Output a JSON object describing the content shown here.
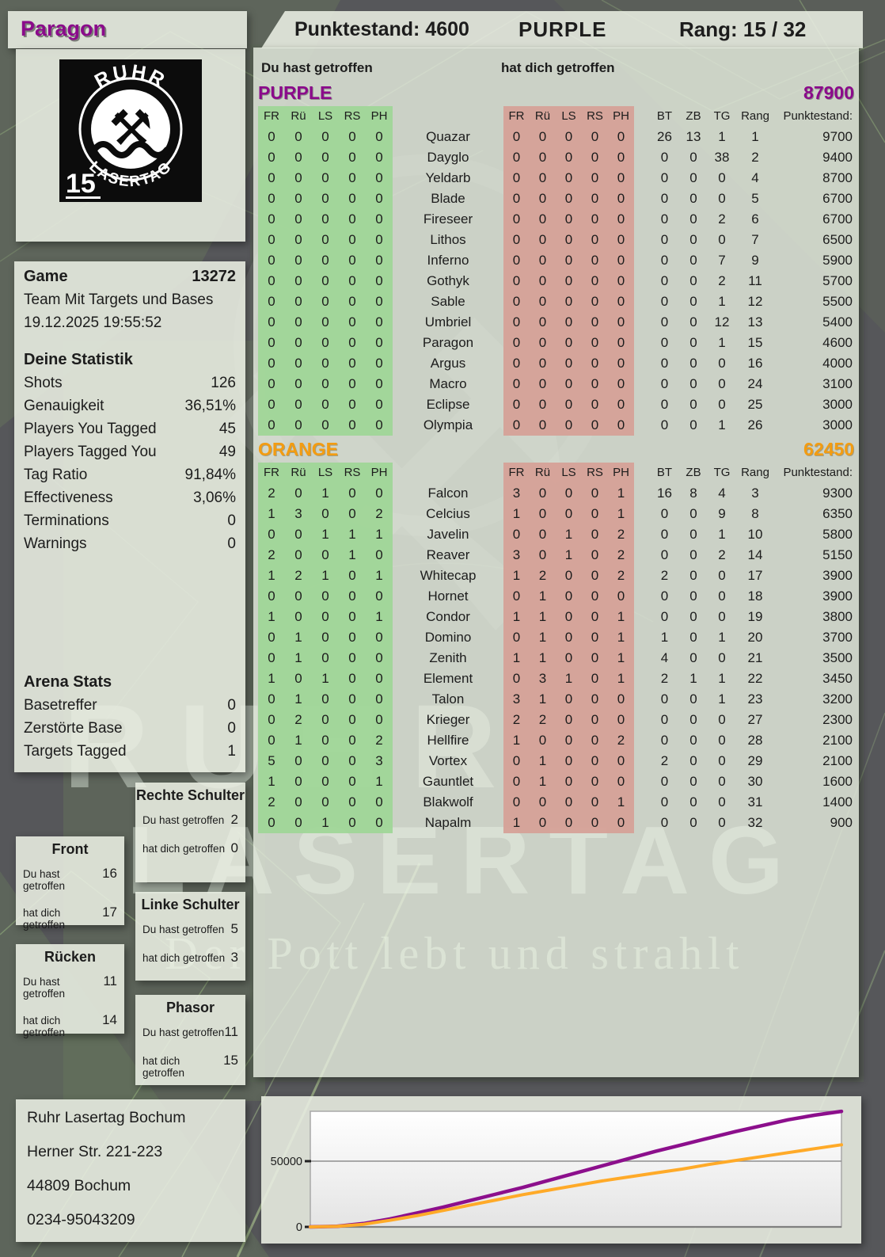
{
  "header": {
    "player": "Paragon",
    "punktestand_label": "Punktestand: 4600",
    "team": "PURPLE",
    "rang_label": "Rang: 15 / 32"
  },
  "logo": {
    "arc_top": "RUHR",
    "arc_bottom": "LASERTAG",
    "badge": "15"
  },
  "game": {
    "label": "Game",
    "id": "13272",
    "mode": "Team Mit Targets und Bases",
    "datetime": "19.12.2025 19:55:52"
  },
  "your_stats": {
    "title": "Deine Statistik",
    "rows": [
      {
        "label": "Shots",
        "value": "126"
      },
      {
        "label": "Genauigkeit",
        "value": "36,51%"
      },
      {
        "label": "Players You Tagged",
        "value": "45"
      },
      {
        "label": "Players Tagged You",
        "value": "49"
      },
      {
        "label": "Tag Ratio",
        "value": "91,84%"
      },
      {
        "label": "Effectiveness",
        "value": "3,06%"
      },
      {
        "label": "Terminations",
        "value": "0"
      },
      {
        "label": "Warnings",
        "value": "0"
      }
    ]
  },
  "arena_stats": {
    "title": "Arena Stats",
    "rows": [
      {
        "label": "Basetreffer",
        "value": "0"
      },
      {
        "label": "Zerstörte Base",
        "value": "0"
      },
      {
        "label": "Targets Tagged",
        "value": "1"
      }
    ]
  },
  "labels": {
    "you_hit": "Du hast getroffen",
    "hit_you": "hat dich getroffen"
  },
  "hit_zones": {
    "rechte_schulter": {
      "title": "Rechte Schulter",
      "you": "2",
      "them": "0"
    },
    "front": {
      "title": "Front",
      "you": "16",
      "them": "17"
    },
    "linke_schulter": {
      "title": "Linke Schulter",
      "you": "5",
      "them": "3"
    },
    "ruecken": {
      "title": "Rücken",
      "you": "11",
      "them": "14"
    },
    "phasor": {
      "title": "Phasor",
      "you": "11",
      "them": "15"
    }
  },
  "columns": [
    "FR",
    "Rü",
    "LS",
    "RS",
    "PH"
  ],
  "right_columns": [
    "BT",
    "ZB",
    "TG",
    "Rang",
    "Punktestand:"
  ],
  "teams": {
    "purple": {
      "name": "PURPLE",
      "score": "87900",
      "color": "#8b0a8b",
      "players": [
        {
          "name": "Quazar",
          "you": [
            0,
            0,
            0,
            0,
            0
          ],
          "them": [
            0,
            0,
            0,
            0,
            0
          ],
          "bt": 26,
          "zb": 13,
          "tg": 1,
          "rang": 1,
          "punktestand": 9700
        },
        {
          "name": "Dayglo",
          "you": [
            0,
            0,
            0,
            0,
            0
          ],
          "them": [
            0,
            0,
            0,
            0,
            0
          ],
          "bt": 0,
          "zb": 0,
          "tg": 38,
          "rang": 2,
          "punktestand": 9400
        },
        {
          "name": "Yeldarb",
          "you": [
            0,
            0,
            0,
            0,
            0
          ],
          "them": [
            0,
            0,
            0,
            0,
            0
          ],
          "bt": 0,
          "zb": 0,
          "tg": 0,
          "rang": 4,
          "punktestand": 8700
        },
        {
          "name": "Blade",
          "you": [
            0,
            0,
            0,
            0,
            0
          ],
          "them": [
            0,
            0,
            0,
            0,
            0
          ],
          "bt": 0,
          "zb": 0,
          "tg": 0,
          "rang": 5,
          "punktestand": 6700
        },
        {
          "name": "Fireseer",
          "you": [
            0,
            0,
            0,
            0,
            0
          ],
          "them": [
            0,
            0,
            0,
            0,
            0
          ],
          "bt": 0,
          "zb": 0,
          "tg": 2,
          "rang": 6,
          "punktestand": 6700
        },
        {
          "name": "Lithos",
          "you": [
            0,
            0,
            0,
            0,
            0
          ],
          "them": [
            0,
            0,
            0,
            0,
            0
          ],
          "bt": 0,
          "zb": 0,
          "tg": 0,
          "rang": 7,
          "punktestand": 6500
        },
        {
          "name": "Inferno",
          "you": [
            0,
            0,
            0,
            0,
            0
          ],
          "them": [
            0,
            0,
            0,
            0,
            0
          ],
          "bt": 0,
          "zb": 0,
          "tg": 7,
          "rang": 9,
          "punktestand": 5900
        },
        {
          "name": "Gothyk",
          "you": [
            0,
            0,
            0,
            0,
            0
          ],
          "them": [
            0,
            0,
            0,
            0,
            0
          ],
          "bt": 0,
          "zb": 0,
          "tg": 2,
          "rang": 11,
          "punktestand": 5700
        },
        {
          "name": "Sable",
          "you": [
            0,
            0,
            0,
            0,
            0
          ],
          "them": [
            0,
            0,
            0,
            0,
            0
          ],
          "bt": 0,
          "zb": 0,
          "tg": 1,
          "rang": 12,
          "punktestand": 5500
        },
        {
          "name": "Umbriel",
          "you": [
            0,
            0,
            0,
            0,
            0
          ],
          "them": [
            0,
            0,
            0,
            0,
            0
          ],
          "bt": 0,
          "zb": 0,
          "tg": 12,
          "rang": 13,
          "punktestand": 5400
        },
        {
          "name": "Paragon",
          "you": [
            0,
            0,
            0,
            0,
            0
          ],
          "them": [
            0,
            0,
            0,
            0,
            0
          ],
          "bt": 0,
          "zb": 0,
          "tg": 1,
          "rang": 15,
          "punktestand": 4600
        },
        {
          "name": "Argus",
          "you": [
            0,
            0,
            0,
            0,
            0
          ],
          "them": [
            0,
            0,
            0,
            0,
            0
          ],
          "bt": 0,
          "zb": 0,
          "tg": 0,
          "rang": 16,
          "punktestand": 4000
        },
        {
          "name": "Macro",
          "you": [
            0,
            0,
            0,
            0,
            0
          ],
          "them": [
            0,
            0,
            0,
            0,
            0
          ],
          "bt": 0,
          "zb": 0,
          "tg": 0,
          "rang": 24,
          "punktestand": 3100
        },
        {
          "name": "Eclipse",
          "you": [
            0,
            0,
            0,
            0,
            0
          ],
          "them": [
            0,
            0,
            0,
            0,
            0
          ],
          "bt": 0,
          "zb": 0,
          "tg": 0,
          "rang": 25,
          "punktestand": 3000
        },
        {
          "name": "Olympia",
          "you": [
            0,
            0,
            0,
            0,
            0
          ],
          "them": [
            0,
            0,
            0,
            0,
            0
          ],
          "bt": 0,
          "zb": 0,
          "tg": 1,
          "rang": 26,
          "punktestand": 3000
        }
      ]
    },
    "orange": {
      "name": "ORANGE",
      "score": "62450",
      "color": "#f39c11",
      "players": [
        {
          "name": "Falcon",
          "you": [
            2,
            0,
            1,
            0,
            0
          ],
          "them": [
            3,
            0,
            0,
            0,
            1
          ],
          "bt": 16,
          "zb": 8,
          "tg": 4,
          "rang": 3,
          "punktestand": 9300
        },
        {
          "name": "Celcius",
          "you": [
            1,
            3,
            0,
            0,
            2
          ],
          "them": [
            1,
            0,
            0,
            0,
            1
          ],
          "bt": 0,
          "zb": 0,
          "tg": 9,
          "rang": 8,
          "punktestand": 6350
        },
        {
          "name": "Javelin",
          "you": [
            0,
            0,
            1,
            1,
            1
          ],
          "them": [
            0,
            0,
            1,
            0,
            2
          ],
          "bt": 0,
          "zb": 0,
          "tg": 1,
          "rang": 10,
          "punktestand": 5800
        },
        {
          "name": "Reaver",
          "you": [
            2,
            0,
            0,
            1,
            0
          ],
          "them": [
            3,
            0,
            1,
            0,
            2
          ],
          "bt": 0,
          "zb": 0,
          "tg": 2,
          "rang": 14,
          "punktestand": 5150
        },
        {
          "name": "Whitecap",
          "you": [
            1,
            2,
            1,
            0,
            1
          ],
          "them": [
            1,
            2,
            0,
            0,
            2
          ],
          "bt": 2,
          "zb": 0,
          "tg": 0,
          "rang": 17,
          "punktestand": 3900
        },
        {
          "name": "Hornet",
          "you": [
            0,
            0,
            0,
            0,
            0
          ],
          "them": [
            0,
            1,
            0,
            0,
            0
          ],
          "bt": 0,
          "zb": 0,
          "tg": 0,
          "rang": 18,
          "punktestand": 3900
        },
        {
          "name": "Condor",
          "you": [
            1,
            0,
            0,
            0,
            1
          ],
          "them": [
            1,
            1,
            0,
            0,
            1
          ],
          "bt": 0,
          "zb": 0,
          "tg": 0,
          "rang": 19,
          "punktestand": 3800
        },
        {
          "name": "Domino",
          "you": [
            0,
            1,
            0,
            0,
            0
          ],
          "them": [
            0,
            1,
            0,
            0,
            1
          ],
          "bt": 1,
          "zb": 0,
          "tg": 1,
          "rang": 20,
          "punktestand": 3700
        },
        {
          "name": "Zenith",
          "you": [
            0,
            1,
            0,
            0,
            0
          ],
          "them": [
            1,
            1,
            0,
            0,
            1
          ],
          "bt": 4,
          "zb": 0,
          "tg": 0,
          "rang": 21,
          "punktestand": 3500
        },
        {
          "name": "Element",
          "you": [
            1,
            0,
            1,
            0,
            0
          ],
          "them": [
            0,
            3,
            1,
            0,
            1
          ],
          "bt": 2,
          "zb": 1,
          "tg": 1,
          "rang": 22,
          "punktestand": 3450
        },
        {
          "name": "Talon",
          "you": [
            0,
            1,
            0,
            0,
            0
          ],
          "them": [
            3,
            1,
            0,
            0,
            0
          ],
          "bt": 0,
          "zb": 0,
          "tg": 1,
          "rang": 23,
          "punktestand": 3200
        },
        {
          "name": "Krieger",
          "you": [
            0,
            2,
            0,
            0,
            0
          ],
          "them": [
            2,
            2,
            0,
            0,
            0
          ],
          "bt": 0,
          "zb": 0,
          "tg": 0,
          "rang": 27,
          "punktestand": 2300
        },
        {
          "name": "Hellfire",
          "you": [
            0,
            1,
            0,
            0,
            2
          ],
          "them": [
            1,
            0,
            0,
            0,
            2
          ],
          "bt": 0,
          "zb": 0,
          "tg": 0,
          "rang": 28,
          "punktestand": 2100
        },
        {
          "name": "Vortex",
          "you": [
            5,
            0,
            0,
            0,
            3
          ],
          "them": [
            0,
            1,
            0,
            0,
            0
          ],
          "bt": 2,
          "zb": 0,
          "tg": 0,
          "rang": 29,
          "punktestand": 2100
        },
        {
          "name": "Gauntlet",
          "you": [
            1,
            0,
            0,
            0,
            1
          ],
          "them": [
            0,
            1,
            0,
            0,
            0
          ],
          "bt": 0,
          "zb": 0,
          "tg": 0,
          "rang": 30,
          "punktestand": 1600
        },
        {
          "name": "Blakwolf",
          "you": [
            2,
            0,
            0,
            0,
            0
          ],
          "them": [
            0,
            0,
            0,
            0,
            1
          ],
          "bt": 0,
          "zb": 0,
          "tg": 0,
          "rang": 31,
          "punktestand": 1400
        },
        {
          "name": "Napalm",
          "you": [
            0,
            0,
            1,
            0,
            0
          ],
          "them": [
            1,
            0,
            0,
            0,
            0
          ],
          "bt": 0,
          "zb": 0,
          "tg": 0,
          "rang": 32,
          "punktestand": 900
        }
      ]
    }
  },
  "watermark": {
    "big_top": "RUHR",
    "big_bottom": "LASERTAG",
    "slogan": "Der Pott lebt und strahlt",
    "hammer_glyph": "⚒"
  },
  "address": {
    "lines": [
      "Ruhr Lasertag Bochum",
      "Herner Str. 221-223",
      "44809 Bochum",
      "0234-95043209"
    ]
  },
  "chart_data": {
    "type": "line",
    "title": "",
    "xlabel": "",
    "ylabel": "",
    "ylim": [
      0,
      88000
    ],
    "grid": "horizontal-at-ticks",
    "legend": "none",
    "yticks": [
      {
        "value": 50000,
        "label": "50000"
      },
      {
        "value": 0,
        "label": "0"
      }
    ],
    "x_percent": [
      0,
      5,
      10,
      15,
      20,
      25,
      30,
      35,
      40,
      45,
      50,
      55,
      60,
      65,
      70,
      75,
      80,
      85,
      90,
      95,
      100
    ],
    "series": [
      {
        "name": "PURPLE",
        "color": "#8c0f8c",
        "values": [
          0,
          500,
          2500,
          6000,
          10500,
          15000,
          20000,
          25000,
          30000,
          35500,
          41000,
          46500,
          52000,
          57500,
          62500,
          67500,
          72500,
          77000,
          81500,
          85000,
          87900
        ]
      },
      {
        "name": "ORANGE",
        "color": "#ffaa28",
        "values": [
          0,
          400,
          2000,
          5000,
          8500,
          12500,
          16500,
          20500,
          24500,
          28000,
          31500,
          35000,
          38000,
          41000,
          44000,
          47500,
          50500,
          53500,
          56500,
          59500,
          62450
        ]
      }
    ],
    "final_scores": {
      "PURPLE": 87900,
      "ORANGE": 62450
    }
  }
}
